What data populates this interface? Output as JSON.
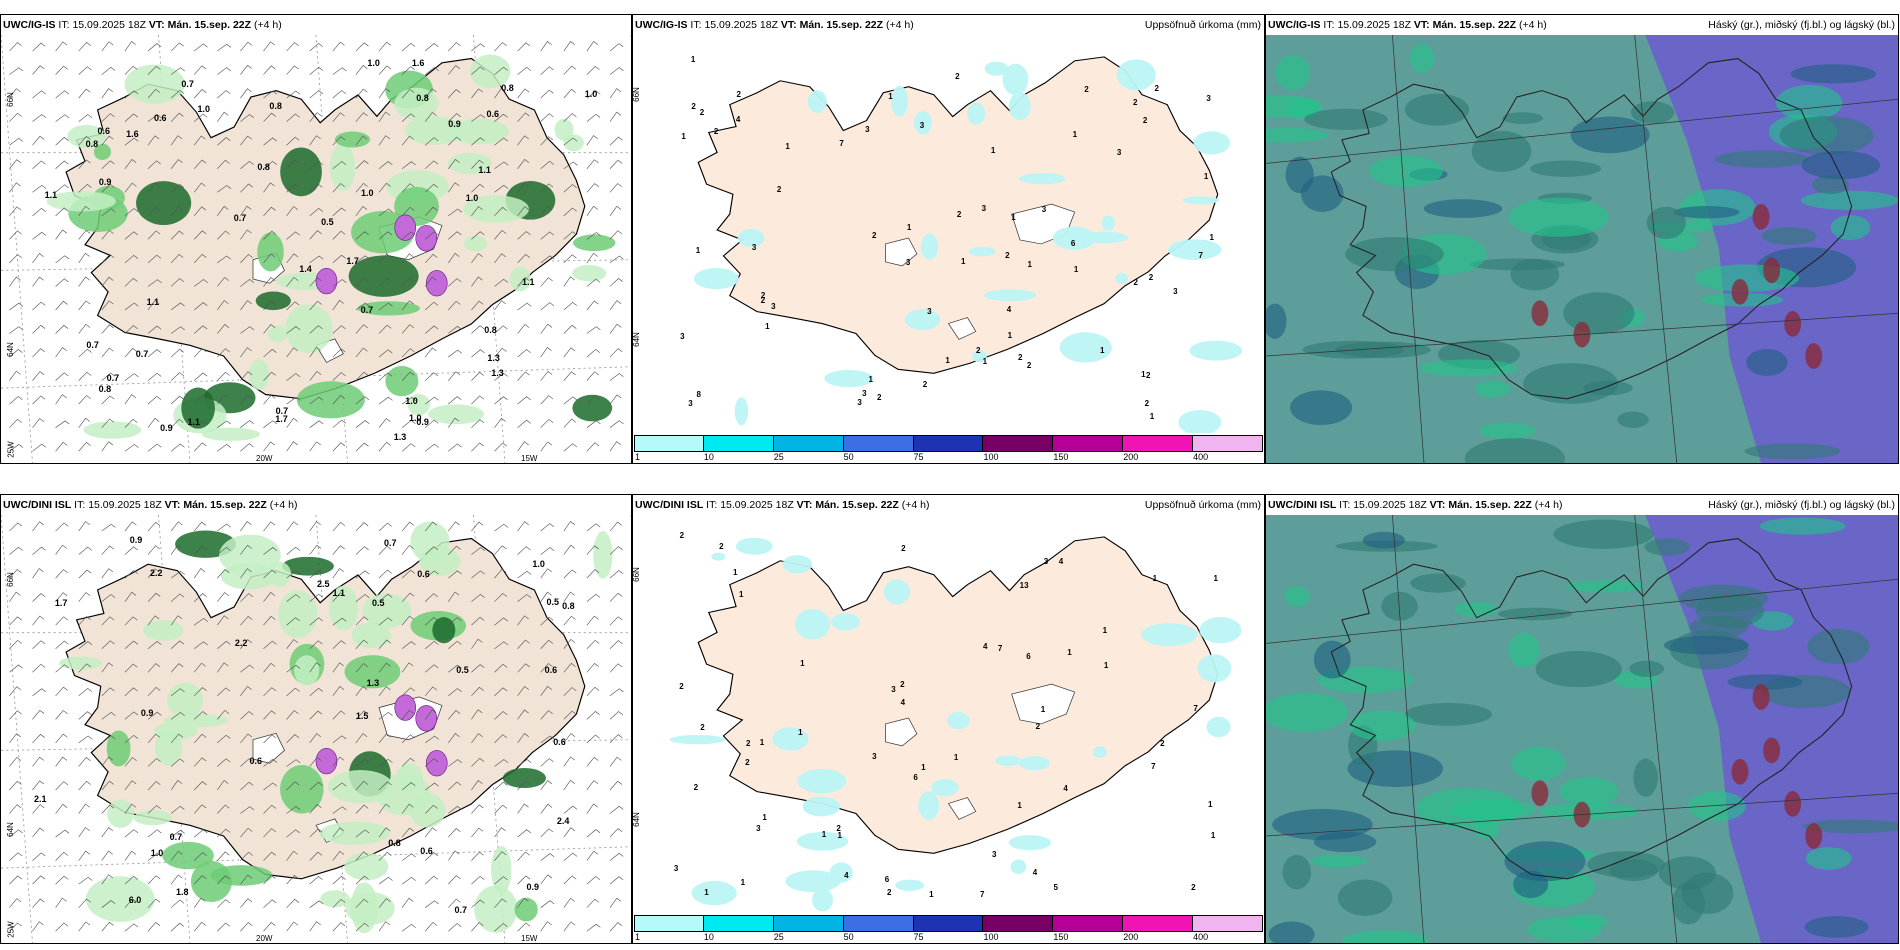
{
  "panels": [
    {
      "model": "UWC/IG-IS",
      "it_label": "IT:",
      "it_value": "15.09.2025 18Z",
      "vt_label": "VT:",
      "vt_value": "Mán. 15.sep. 22Z",
      "lead": "(+4 h)",
      "right_title": "",
      "type": "precip-wind",
      "values": [
        "0.7",
        "1.1",
        "1.0",
        "0.8",
        "0.6",
        "0.8",
        "1.3",
        "1.4",
        "0.8",
        "0.9",
        "0.7",
        "1.6",
        "1.1",
        "0.9",
        "0.7",
        "1.7",
        "1.0",
        "1.0",
        "0.6",
        "0.8",
        "1.0",
        "0.9",
        "0.7",
        "1.0",
        "0.6",
        "1.0",
        "0.8",
        "0.8",
        "0.7",
        "1.7",
        "1.6",
        "0.5",
        "1.3",
        "0.8",
        "0.7",
        "1.1",
        "1.3",
        "0.9",
        "0.7",
        "1.1",
        "1.0",
        "1.1"
      ],
      "lon_labels": [
        "20W",
        "15W"
      ],
      "lat_labels": [
        "66N",
        "64N",
        "25W"
      ]
    },
    {
      "model": "UWC/IG-IS",
      "it_label": "IT:",
      "it_value": "15.09.2025 18Z",
      "vt_label": "VT:",
      "vt_value": "Mán. 15.sep. 22Z",
      "lead": "(+4 h)",
      "right_title": "Uppsöfnuð úrkoma (mm)",
      "type": "accum",
      "values": [
        "2",
        "6",
        "2",
        "2",
        "1",
        "2",
        "1",
        "3",
        "3",
        "1",
        "3",
        "2",
        "1",
        "1",
        "1",
        "2",
        "1",
        "2",
        "2",
        "1",
        "2",
        "1",
        "4",
        "1",
        "2",
        "3",
        "2",
        "2",
        "3",
        "3",
        "2",
        "4",
        "2",
        "2",
        "2",
        "1",
        "7",
        "1",
        "2",
        "1",
        "2",
        "3",
        "7",
        "8",
        "3",
        "3",
        "2",
        "3",
        "3",
        "2",
        "3",
        "1",
        "3",
        "1",
        "2",
        "1",
        "1",
        "2",
        "1",
        "1",
        "1",
        "1",
        "2",
        "1",
        "2",
        "3",
        "3"
      ],
      "lat_labels": [
        "66N",
        "64N"
      ]
    },
    {
      "model": "UWC/IG-IS",
      "it_label": "IT:",
      "it_value": "15.09.2025 18Z",
      "vt_label": "VT:",
      "vt_value": "Mán. 15.sep. 22Z",
      "lead": "(+4 h)",
      "right_title": "Háský (gr.), miðský (fj.bl.) og lágský (bl.)",
      "type": "clouds"
    },
    {
      "model": "UWC/DINI ISL",
      "it_label": "IT:",
      "it_value": "15.09.2025 18Z",
      "vt_label": "VT:",
      "vt_value": "Mán. 15.sep. 22Z",
      "lead": "(+4 h)",
      "right_title": "",
      "type": "precip-wind",
      "values": [
        "0.6",
        "6.0",
        "2.5",
        "0.6",
        "2.2",
        "0.9",
        "1.1",
        "1.5",
        "2.1",
        "1.8",
        "1.3",
        "0.7",
        "0.9",
        "0.5",
        "0.6",
        "0.6",
        "0.8",
        "2.2",
        "1.7",
        "2.4",
        "0.6",
        "0.7",
        "0.5",
        "1.0",
        "0.7",
        "1.0",
        "0.8",
        "0.5",
        "0.9"
      ],
      "lon_labels": [
        "20W",
        "15W"
      ],
      "lat_labels": [
        "66N",
        "64N",
        "25W"
      ]
    },
    {
      "model": "UWC/DINI ISL",
      "it_label": "IT:",
      "it_value": "15.09.2025 18Z",
      "vt_label": "VT:",
      "vt_value": "Mán. 15.sep. 22Z",
      "lead": "(+4 h)",
      "right_title": "Uppsöfnuð úrkoma (mm)",
      "type": "accum",
      "values": [
        "1",
        "1",
        "4",
        "1",
        "1",
        "13",
        "3",
        "2",
        "2",
        "7",
        "1",
        "2",
        "1",
        "2",
        "3",
        "4",
        "1",
        "5",
        "3",
        "7",
        "1",
        "7",
        "4",
        "2",
        "2",
        "2",
        "6",
        "3",
        "1",
        "1",
        "2",
        "1",
        "4",
        "6",
        "7",
        "1",
        "2",
        "1",
        "2",
        "1",
        "4",
        "2",
        "1",
        "4",
        "2",
        "3",
        "1",
        "1",
        "2",
        "1",
        "6",
        "2",
        "1",
        "3",
        "1",
        "1",
        "1"
      ],
      "lat_labels": [
        "66N",
        "64N"
      ]
    },
    {
      "model": "UWC/DINI ISL",
      "it_label": "IT:",
      "it_value": "15.09.2025 18Z",
      "vt_label": "VT:",
      "vt_value": "Mán. 15.sep. 22Z",
      "lead": "(+4 h)",
      "right_title": "Háský (gr.), miðský (fj.bl.) og lágský (bl.)",
      "type": "clouds"
    }
  ],
  "colorbar": {
    "ticks": [
      "1",
      "10",
      "25",
      "50",
      "75",
      "100",
      "150",
      "200",
      "400"
    ],
    "colors": [
      "#b4fafa",
      "#00e8f0",
      "#00b4e6",
      "#3c6ee6",
      "#1e32b4",
      "#780064",
      "#b40096",
      "#f014b4",
      "#f0b4f0"
    ]
  },
  "colors": {
    "land": "#f1e4d7",
    "accum_land": "#fcebdc",
    "precip_light": "#c3efc3",
    "precip_mid": "#6dcc75",
    "precip_dark": "#1b6b2b",
    "accum_light": "#bcf4f4",
    "cloud_low_sea": "#2f7a74",
    "cloud_mid": "#5e9e9a",
    "cloud_high": "#6a5fcc",
    "cloud_green": "#22c48a"
  }
}
